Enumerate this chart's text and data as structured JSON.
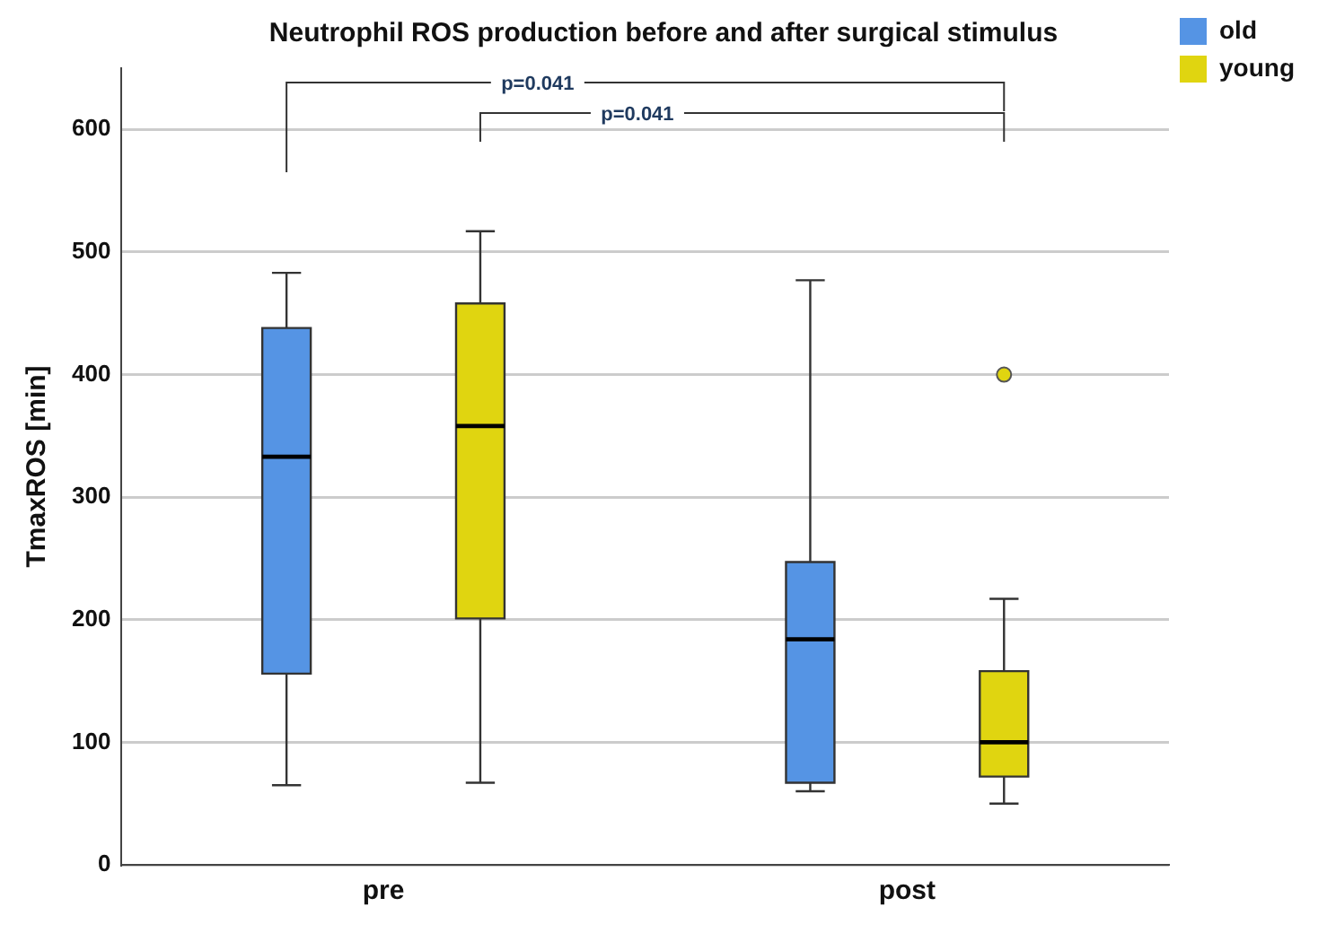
{
  "chart_data": {
    "type": "box",
    "title": "Neutrophil ROS production before and after surgical stimulus",
    "ylabel": "TmaxROS [min]",
    "categories": [
      "pre",
      "post"
    ],
    "series": [
      {
        "name": "old",
        "color": "#5594e4",
        "boxes": [
          {
            "low": 65,
            "q1": 156,
            "median": 333,
            "q3": 438,
            "high": 483
          },
          {
            "low": 60,
            "q1": 67,
            "median": 184,
            "q3": 247,
            "high": 477
          }
        ]
      },
      {
        "name": "young",
        "color": "#e0d510",
        "boxes": [
          {
            "low": 67,
            "q1": 201,
            "median": 358,
            "q3": 458,
            "high": 517
          },
          {
            "low": 50,
            "q1": 72,
            "median": 100,
            "q3": 158,
            "high": 217,
            "outliers": [
              400
            ]
          }
        ]
      }
    ],
    "ylim": [
      0,
      650
    ],
    "yticks": [
      0,
      100,
      200,
      300,
      400,
      500,
      600
    ],
    "grid": "y",
    "legend": "top right",
    "annotations": [
      "p=0.041",
      "p=0.041"
    ]
  }
}
